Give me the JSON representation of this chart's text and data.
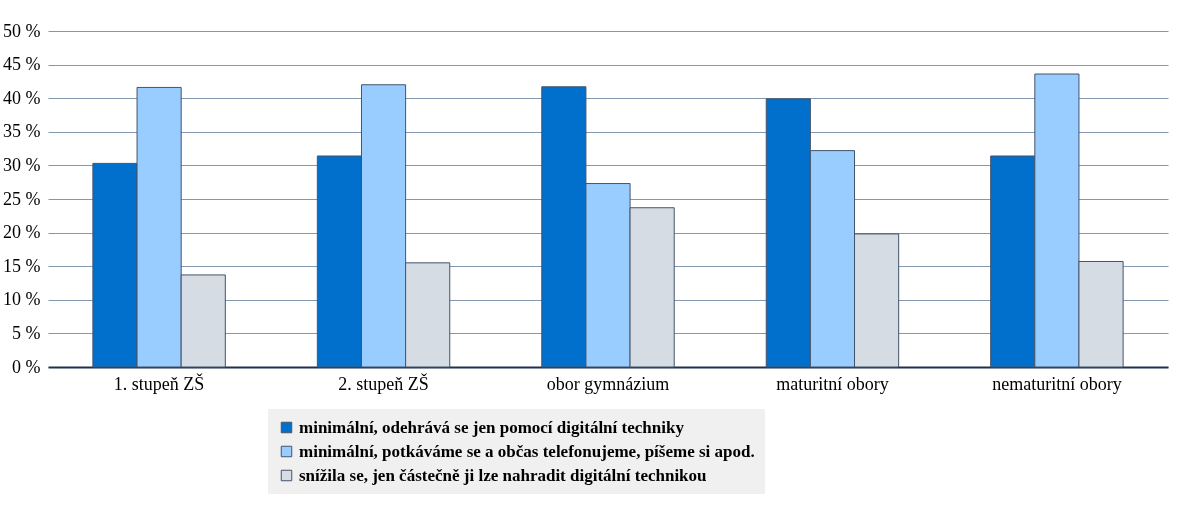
{
  "chart_data": {
    "type": "bar",
    "categories": [
      "1. stupeň ZŠ",
      "2. stupeň ZŠ",
      "obor gymnázium",
      "maturitní obory",
      "nematuritní obory"
    ],
    "series": [
      {
        "name": "minimální, odehrává se jen pomocí digitální techniky",
        "color": "#0070cc",
        "values": [
          30.3,
          31.4,
          41.7,
          39.9,
          31.4
        ]
      },
      {
        "name": "minimální, potkáváme se a občas telefonujeme, píšeme si apod.",
        "color": "#99ccff",
        "values": [
          41.6,
          42.0,
          27.3,
          32.2,
          43.6
        ]
      },
      {
        "name": "snížila se, jen částečně ji lze nahradit digitální technikou",
        "color": "#d6dce4",
        "values": [
          13.7,
          15.5,
          23.7,
          19.8,
          15.7
        ]
      }
    ],
    "ylim": [
      0,
      50
    ],
    "yticks": [
      {
        "value": 0,
        "label": "0 %"
      },
      {
        "value": 5,
        "label": "5 %"
      },
      {
        "value": 10,
        "label": "10 %"
      },
      {
        "value": 15,
        "label": "15 %"
      },
      {
        "value": 20,
        "label": "20 %"
      },
      {
        "value": 25,
        "label": "25 %"
      },
      {
        "value": 30,
        "label": "30 %"
      },
      {
        "value": 35,
        "label": "35 %"
      },
      {
        "value": 40,
        "label": "40 %"
      },
      {
        "value": 45,
        "label": "45 %"
      },
      {
        "value": 50,
        "label": "50 %"
      }
    ],
    "grid": "y",
    "legend": "bottom"
  }
}
